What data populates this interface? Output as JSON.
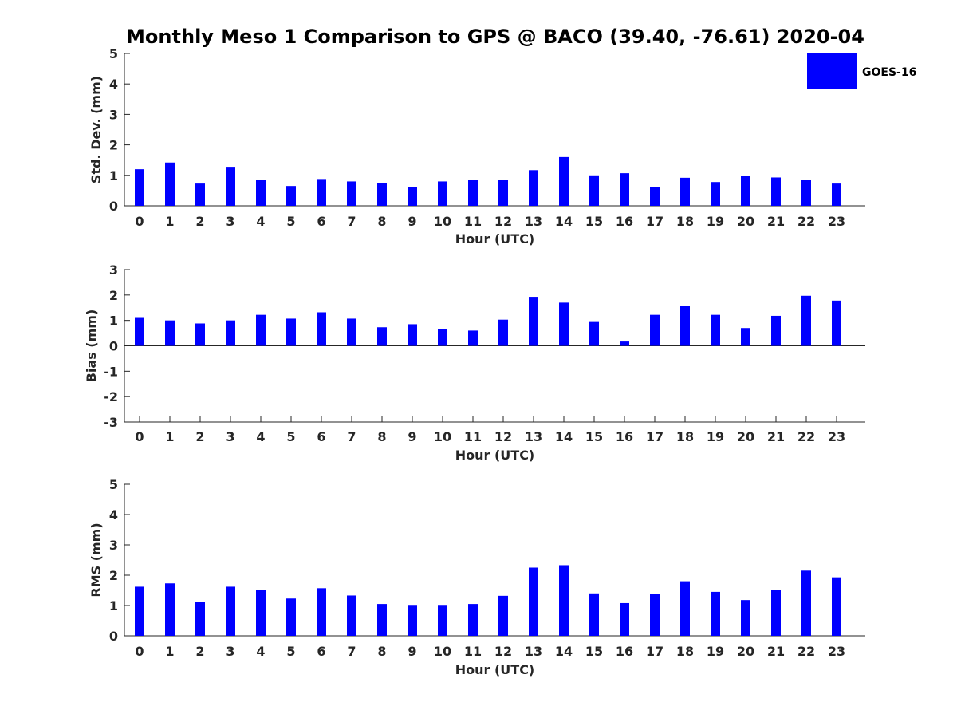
{
  "title": "Monthly Meso 1 Comparison to GPS @ BACO (39.40, -76.61) 2020-04",
  "legend": {
    "label": "GOES-16",
    "color": "#0000ff"
  },
  "chart_data": [
    {
      "type": "bar",
      "name": "std",
      "ylabel": "Std. Dev. (mm)",
      "xlabel": "Hour (UTC)",
      "ylim": [
        0,
        5
      ],
      "yticks": [
        0,
        1,
        2,
        3,
        4,
        5
      ],
      "categories": [
        "0",
        "1",
        "2",
        "3",
        "4",
        "5",
        "6",
        "7",
        "8",
        "9",
        "10",
        "11",
        "12",
        "13",
        "14",
        "15",
        "16",
        "17",
        "18",
        "19",
        "20",
        "21",
        "22",
        "23"
      ],
      "series": [
        {
          "name": "GOES-16",
          "color": "#0000ff",
          "values": [
            1.2,
            1.42,
            0.73,
            1.28,
            0.85,
            0.65,
            0.88,
            0.8,
            0.75,
            0.62,
            0.8,
            0.85,
            0.85,
            1.17,
            1.6,
            1.0,
            1.07,
            0.62,
            0.92,
            0.78,
            0.97,
            0.93,
            0.85,
            0.73
          ]
        }
      ]
    },
    {
      "type": "bar",
      "name": "bias",
      "ylabel": "Bias (mm)",
      "xlabel": "Hour (UTC)",
      "ylim": [
        -3,
        3
      ],
      "yticks": [
        -3,
        -2,
        -1,
        0,
        1,
        2,
        3
      ],
      "zeroline": true,
      "categories": [
        "0",
        "1",
        "2",
        "3",
        "4",
        "5",
        "6",
        "7",
        "8",
        "9",
        "10",
        "11",
        "12",
        "13",
        "14",
        "15",
        "16",
        "17",
        "18",
        "19",
        "20",
        "21",
        "22",
        "23"
      ],
      "series": [
        {
          "name": "GOES-16",
          "color": "#0000ff",
          "values": [
            1.13,
            1.0,
            0.88,
            1.0,
            1.22,
            1.07,
            1.32,
            1.07,
            0.73,
            0.85,
            0.67,
            0.6,
            1.03,
            1.93,
            1.7,
            0.97,
            0.17,
            1.22,
            1.57,
            1.22,
            0.7,
            1.18,
            1.97,
            1.78
          ]
        }
      ]
    },
    {
      "type": "bar",
      "name": "rms",
      "ylabel": "RMS (mm)",
      "xlabel": "Hour (UTC)",
      "ylim": [
        0,
        5
      ],
      "yticks": [
        0,
        1,
        2,
        3,
        4,
        5
      ],
      "categories": [
        "0",
        "1",
        "2",
        "3",
        "4",
        "5",
        "6",
        "7",
        "8",
        "9",
        "10",
        "11",
        "12",
        "13",
        "14",
        "15",
        "16",
        "17",
        "18",
        "19",
        "20",
        "21",
        "22",
        "23"
      ],
      "series": [
        {
          "name": "GOES-16",
          "color": "#0000ff",
          "values": [
            1.62,
            1.73,
            1.12,
            1.62,
            1.5,
            1.23,
            1.57,
            1.33,
            1.05,
            1.02,
            1.02,
            1.05,
            1.32,
            2.25,
            2.33,
            1.4,
            1.08,
            1.37,
            1.8,
            1.45,
            1.18,
            1.5,
            2.15,
            1.93
          ]
        }
      ]
    }
  ]
}
